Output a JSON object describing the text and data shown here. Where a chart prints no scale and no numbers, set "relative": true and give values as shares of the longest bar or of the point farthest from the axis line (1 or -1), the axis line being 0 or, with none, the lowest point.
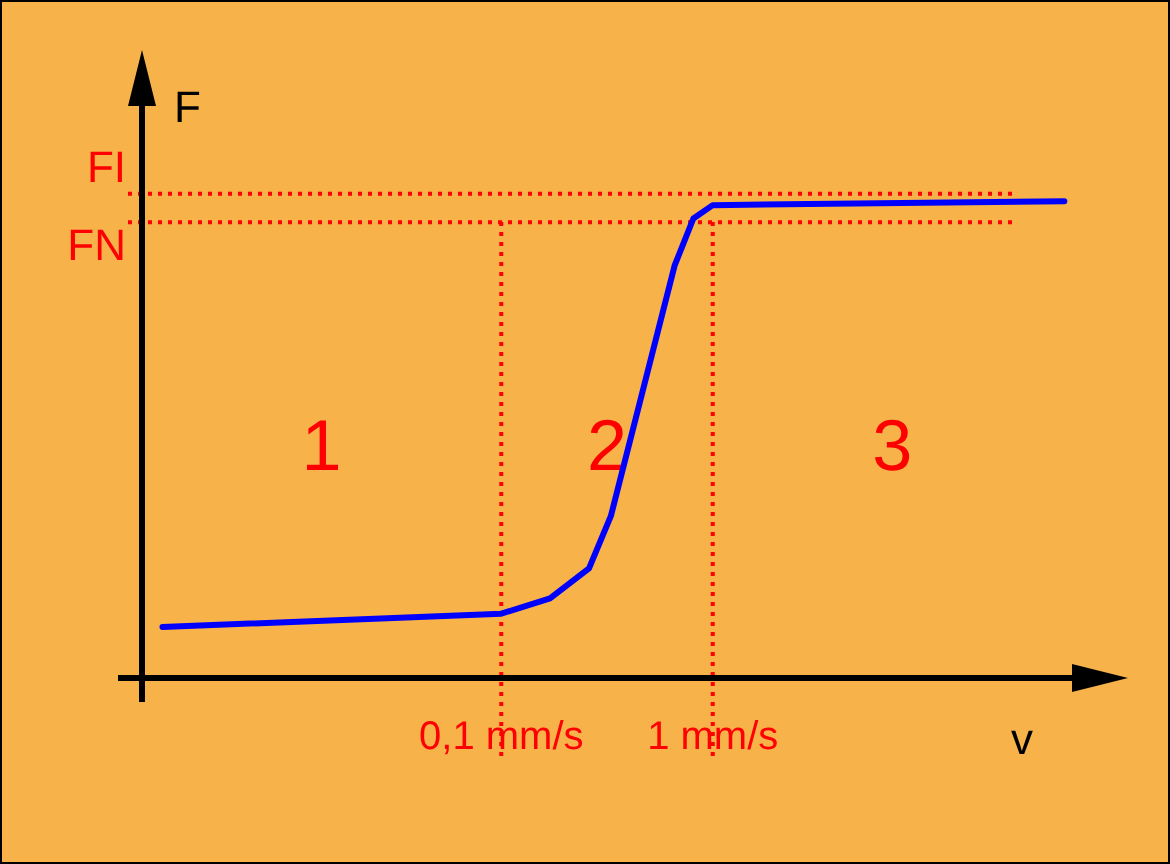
{
  "chart_data": {
    "type": "line",
    "relative": true,
    "xlabel": "v",
    "ylabel": "F",
    "log": "x",
    "xlim": [
      0.002,
      50
    ],
    "xticks": [
      {
        "value": 0.1,
        "label": "0,1 mm/s"
      },
      {
        "value": 1,
        "label": "1 mm/s"
      }
    ],
    "tick_labels": "x",
    "legend": false,
    "marker": "none",
    "line_style": "solid",
    "x": [
      0.0025,
      0.1,
      0.17,
      0.26,
      0.33,
      0.66,
      0.81,
      1,
      46
    ],
    "series": [
      {
        "color": "#0000ff",
        "values": [
          0.107,
          0.135,
          0.167,
          0.23,
          0.34,
          0.865,
          0.964,
          0.992,
          1
        ]
      }
    ],
    "ref_lines": [
      {
        "axis": "x",
        "value": 0.1,
        "color": "#ff0000",
        "line_style": "dotted"
      },
      {
        "axis": "x",
        "value": 1,
        "color": "#ff0000",
        "line_style": "dotted"
      },
      {
        "axis": "y",
        "value": 1.016,
        "label": "FI",
        "color": "#ff0000",
        "line_style": "dotted"
      },
      {
        "axis": "y",
        "value": 0.956,
        "label": "FN",
        "color": "#ff0000",
        "line_style": "dotted"
      }
    ],
    "annotations": [
      "1",
      "2",
      "3"
    ]
  }
}
